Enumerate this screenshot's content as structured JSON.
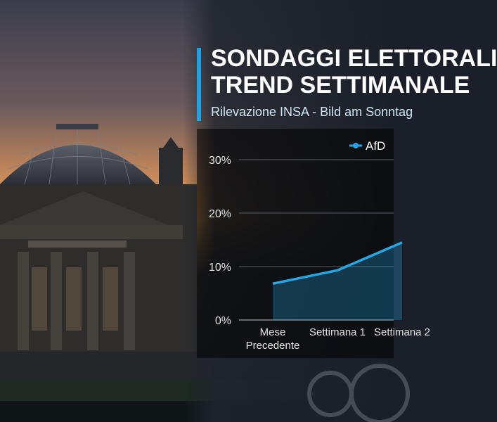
{
  "title": {
    "line1": "SONDAGGI ELETTORALI",
    "line2": "TREND SETTIMANALE"
  },
  "subtitle": "Rilevazione INSA - Bild am Sonntag",
  "colors": {
    "accent": "#1fa3e0",
    "series_afd": "#27a8e6"
  },
  "chart_data": {
    "type": "area",
    "categories": [
      "Mese\nPrecedente",
      "Settimana 1",
      "Settimana 2"
    ],
    "series": [
      {
        "name": "AfD",
        "values": [
          6.8,
          9.3,
          14.5
        ]
      }
    ],
    "yticks": [
      "0%",
      "10%",
      "20%",
      "30%"
    ],
    "ylim": [
      0,
      30
    ],
    "grid": true,
    "legend": "top-right"
  }
}
